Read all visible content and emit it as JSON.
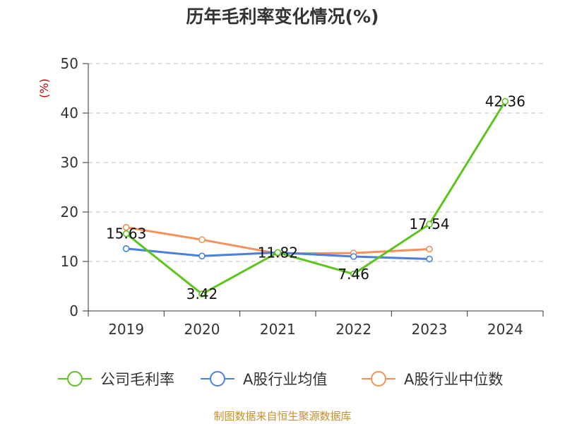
{
  "chart_data": {
    "type": "line",
    "title": "历年毛利率变化情况(%)",
    "ylabel": "(%)",
    "xlabel": "",
    "categories": [
      "2019",
      "2020",
      "2021",
      "2022",
      "2023",
      "2024"
    ],
    "ylim": [
      0,
      50
    ],
    "yticks": [
      0,
      10,
      20,
      30,
      40,
      50
    ],
    "grid": "horizontal-dashed",
    "legend_position": "bottom",
    "series": [
      {
        "name": "公司毛利率",
        "color": "#5cc41a",
        "values": [
          15.63,
          3.42,
          11.82,
          7.46,
          17.54,
          42.36
        ],
        "labels": [
          "15.63",
          "3.42",
          "11.82",
          "7.46",
          "17.54",
          "42.36"
        ]
      },
      {
        "name": "A股行业均值",
        "color": "#4a7fe0",
        "values": [
          12.6,
          11.1,
          11.8,
          11.0,
          10.5,
          null
        ]
      },
      {
        "name": "A股行业中位数",
        "color": "#f5905a",
        "values": [
          16.9,
          14.4,
          11.6,
          11.7,
          12.5,
          null
        ]
      }
    ],
    "source": "制图数据来自恒生聚源数据库"
  }
}
